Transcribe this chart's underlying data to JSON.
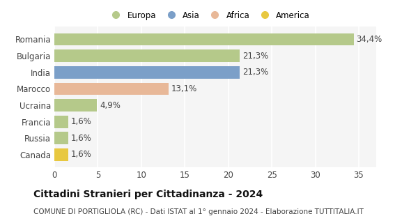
{
  "categories": [
    "Romania",
    "Bulgaria",
    "India",
    "Marocco",
    "Ucraina",
    "Francia",
    "Russia",
    "Canada"
  ],
  "values": [
    34.4,
    21.3,
    21.3,
    13.1,
    4.9,
    1.6,
    1.6,
    1.6
  ],
  "labels": [
    "34,4%",
    "21,3%",
    "21,3%",
    "13,1%",
    "4,9%",
    "1,6%",
    "1,6%",
    "1,6%"
  ],
  "bar_colors": [
    "#b5c98a",
    "#b5c98a",
    "#7b9fc8",
    "#e8b898",
    "#b5c98a",
    "#b5c98a",
    "#b5c98a",
    "#e8c840"
  ],
  "legend_labels": [
    "Europa",
    "Asia",
    "Africa",
    "America"
  ],
  "legend_colors": [
    "#b5c98a",
    "#7b9fc8",
    "#e8b898",
    "#e8c840"
  ],
  "xlim": [
    0,
    37
  ],
  "title": "Cittadini Stranieri per Cittadinanza - 2024",
  "subtitle": "COMUNE DI PORTIGLIOLA (RC) - Dati ISTAT al 1° gennaio 2024 - Elaborazione TUTTITALIA.IT",
  "bg_color": "#ffffff",
  "plot_bg_color": "#f5f5f5",
  "bar_height": 0.75,
  "grid_color": "#ffffff",
  "title_fontsize": 10,
  "subtitle_fontsize": 7.5,
  "label_fontsize": 8.5,
  "tick_fontsize": 8.5,
  "legend_fontsize": 8.5
}
